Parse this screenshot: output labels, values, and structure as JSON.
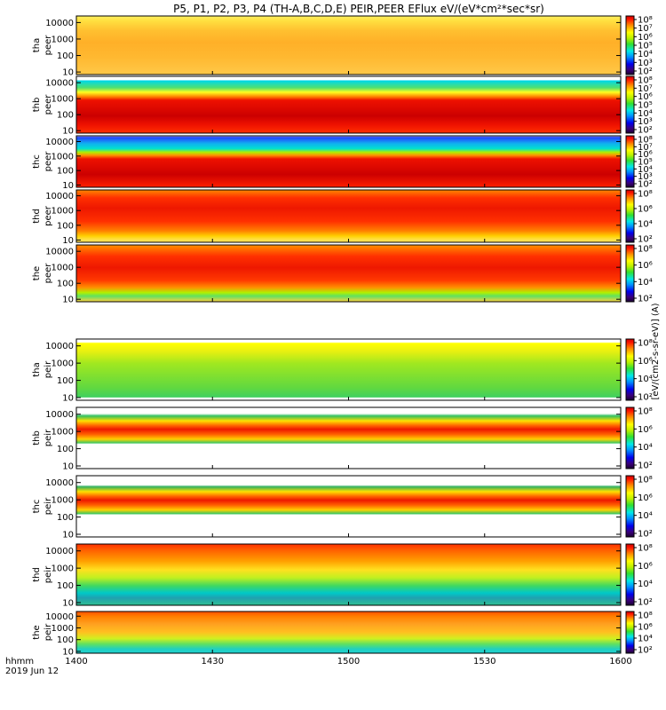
{
  "chart_data": {
    "type": "heatmap",
    "title": "P5, P1, P2, P3, P4 (TH-A,B,C,D,E) PEIR,PEER EFlux eV/(eV*cm²*sec*sr)",
    "x": {
      "tick_labels": [
        "1400",
        "1430",
        "1500",
        "1530",
        "1600"
      ],
      "range": [
        "1400",
        "1600"
      ],
      "corner_label_1": "hhmm",
      "corner_label_2": "2019 Jun 12"
    },
    "y_tick_labels": [
      "10000",
      "1000",
      "100",
      "10"
    ],
    "y_scale": "log",
    "y_range_eV": [
      7,
      25000
    ],
    "colorbar": {
      "scale": "log",
      "tick_labels_uniform": [
        "10^8",
        "10^7",
        "10^6",
        "10^5",
        "10^4",
        "10^3",
        "10^2"
      ],
      "tick_labels_even": [
        "10^8",
        "10^6",
        "10^4",
        "10^2"
      ],
      "unit_label": "[eV/(cm2-s-sr-eV)] (A)"
    },
    "panels": [
      {
        "probe": "tha",
        "instrument": "peer",
        "colorbar_style": "uniform"
      },
      {
        "probe": "thb",
        "instrument": "peer",
        "colorbar_style": "uniform"
      },
      {
        "probe": "thc",
        "instrument": "peer",
        "colorbar_style": "uniform"
      },
      {
        "probe": "thd",
        "instrument": "peer",
        "colorbar_style": "even"
      },
      {
        "probe": "the",
        "instrument": "peer",
        "colorbar_style": "even"
      },
      {
        "probe": "tha",
        "instrument": "peir",
        "colorbar_style": "even"
      },
      {
        "probe": "thb",
        "instrument": "peir",
        "colorbar_style": "even"
      },
      {
        "probe": "thc",
        "instrument": "peir",
        "colorbar_style": "even"
      },
      {
        "probe": "thd",
        "instrument": "peir",
        "colorbar_style": "even"
      },
      {
        "probe": "the",
        "instrument": "peir",
        "colorbar_style": "even"
      }
    ]
  }
}
